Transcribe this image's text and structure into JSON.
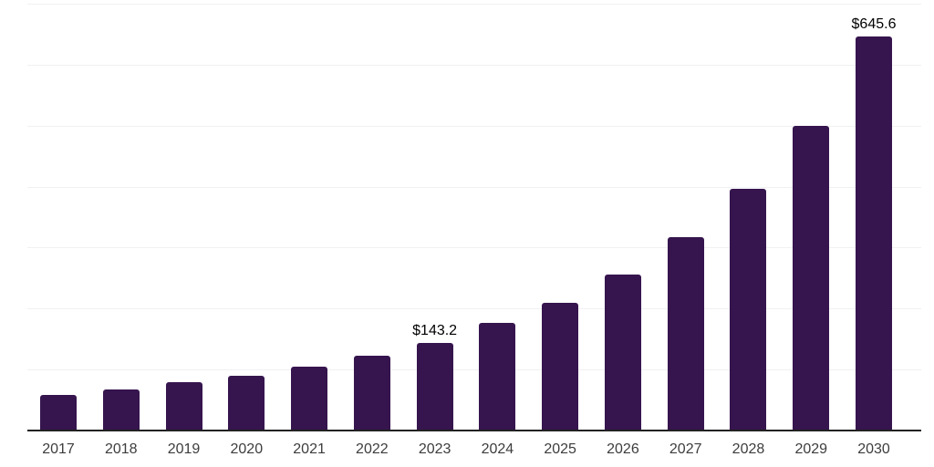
{
  "chart_data": {
    "type": "bar",
    "title": "",
    "xlabel": "",
    "ylabel": "",
    "categories": [
      "2017",
      "2018",
      "2019",
      "2020",
      "2021",
      "2022",
      "2023",
      "2024",
      "2025",
      "2026",
      "2027",
      "2028",
      "2029",
      "2030"
    ],
    "values": [
      57.9,
      67.1,
      78.9,
      89.1,
      104.2,
      122.9,
      143.2,
      175.9,
      209.3,
      256.1,
      317.0,
      396.5,
      500.3,
      645.6
    ],
    "data_labels": {
      "2023": "$143.2",
      "2030": "$645.6"
    },
    "ylim": [
      0,
      700
    ],
    "gridline_values": [
      100,
      200,
      300,
      400,
      500,
      600,
      700
    ],
    "grid_on": true,
    "legend": "none",
    "colors": {
      "bar": "#36154e",
      "gridline": "#f1f1f3",
      "axis_line": "#222222",
      "tick_label": "#3d3d3d",
      "value_label": "#000000",
      "background": "#ffffff"
    }
  }
}
